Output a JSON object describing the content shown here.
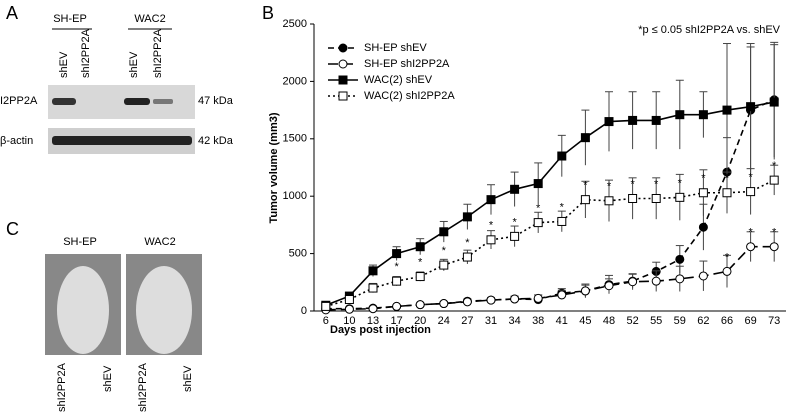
{
  "panel_a": {
    "label": "A",
    "groups": [
      "SH-EP",
      "WAC2"
    ],
    "lanes": [
      "shEV",
      "shI2PP2A",
      "shEV",
      "shI2PP2A"
    ],
    "rows": [
      {
        "name": "I2PP2A",
        "size": "47 kDa"
      },
      {
        "name": "β-actin",
        "size": "42 kDa"
      }
    ]
  },
  "panel_c": {
    "label": "C",
    "groups": [
      "SH-EP",
      "WAC2"
    ],
    "lanes": [
      "shI2PP2A",
      "shEV",
      "shI2PP2A",
      "shEV"
    ]
  },
  "chart_data": {
    "type": "line",
    "panel_label": "B",
    "annotation": "*p ≤ 0.05 shI2PP2A vs. shEV",
    "x_label": "Days post injection",
    "y_label": "Tumor volume (mm3)",
    "categories": [
      "6",
      "10",
      "13",
      "17",
      "20",
      "24",
      "27",
      "31",
      "34",
      "38",
      "41",
      "45",
      "48",
      "52",
      "55",
      "59",
      "62",
      "66",
      "69",
      "73"
    ],
    "ylim": [
      0,
      2500
    ],
    "yticks": [
      0,
      500,
      1000,
      1500,
      2000,
      2500
    ],
    "legend": "top-left",
    "series": [
      {
        "name": "SH-EP shEV",
        "color": "#000000",
        "dash": "6,4",
        "marker": "circle",
        "filled": true,
        "values": [
          20,
          20,
          25,
          40,
          55,
          65,
          85,
          95,
          105,
          100,
          155,
          175,
          230,
          260,
          345,
          450,
          730,
          1210,
          1750,
          1840
        ],
        "errors": [
          10,
          10,
          10,
          15,
          15,
          15,
          20,
          20,
          25,
          40,
          40,
          60,
          80,
          60,
          80,
          120,
          200,
          300,
          550,
          500
        ]
      },
      {
        "name": "SH-EP shI2PP2A",
        "color": "#000000",
        "dash": "10,5",
        "marker": "circle",
        "filled": false,
        "values": [
          10,
          15,
          20,
          40,
          55,
          65,
          80,
          95,
          105,
          110,
          140,
          175,
          220,
          255,
          260,
          280,
          305,
          345,
          560,
          560
        ],
        "errors": [
          5,
          5,
          10,
          10,
          15,
          15,
          20,
          20,
          20,
          30,
          40,
          50,
          60,
          70,
          90,
          110,
          130,
          140,
          130,
          130
        ],
        "significance": [
          null,
          null,
          null,
          null,
          null,
          null,
          null,
          null,
          null,
          null,
          null,
          null,
          null,
          null,
          null,
          null,
          null,
          "*",
          "*",
          "*"
        ]
      },
      {
        "name": "WAC(2) shEV",
        "color": "#000000",
        "dash": "",
        "marker": "square",
        "filled": true,
        "values": [
          50,
          130,
          350,
          500,
          560,
          690,
          820,
          970,
          1060,
          1110,
          1350,
          1510,
          1650,
          1660,
          1660,
          1710,
          1710,
          1750,
          1780,
          1820
        ],
        "errors": [
          15,
          30,
          50,
          60,
          70,
          90,
          110,
          130,
          150,
          180,
          180,
          240,
          260,
          250,
          250,
          300,
          200,
          580,
          550,
          500
        ]
      },
      {
        "name": "WAC(2) shI2PP2A",
        "color": "#000000",
        "dash": "2,3",
        "marker": "square",
        "filled": false,
        "values": [
          40,
          100,
          200,
          260,
          300,
          400,
          470,
          620,
          650,
          770,
          780,
          970,
          960,
          980,
          980,
          990,
          1030,
          1030,
          1040,
          1140
        ],
        "errors": [
          10,
          20,
          40,
          40,
          40,
          50,
          60,
          80,
          90,
          90,
          90,
          160,
          180,
          180,
          180,
          200,
          200,
          180,
          200,
          130
        ],
        "significance": [
          null,
          null,
          "*",
          "*",
          "*",
          "*",
          "*",
          "*",
          "*",
          "*",
          "*",
          "*",
          "*",
          "*",
          "*",
          "*",
          "*",
          "*",
          "*",
          "*"
        ]
      }
    ]
  }
}
